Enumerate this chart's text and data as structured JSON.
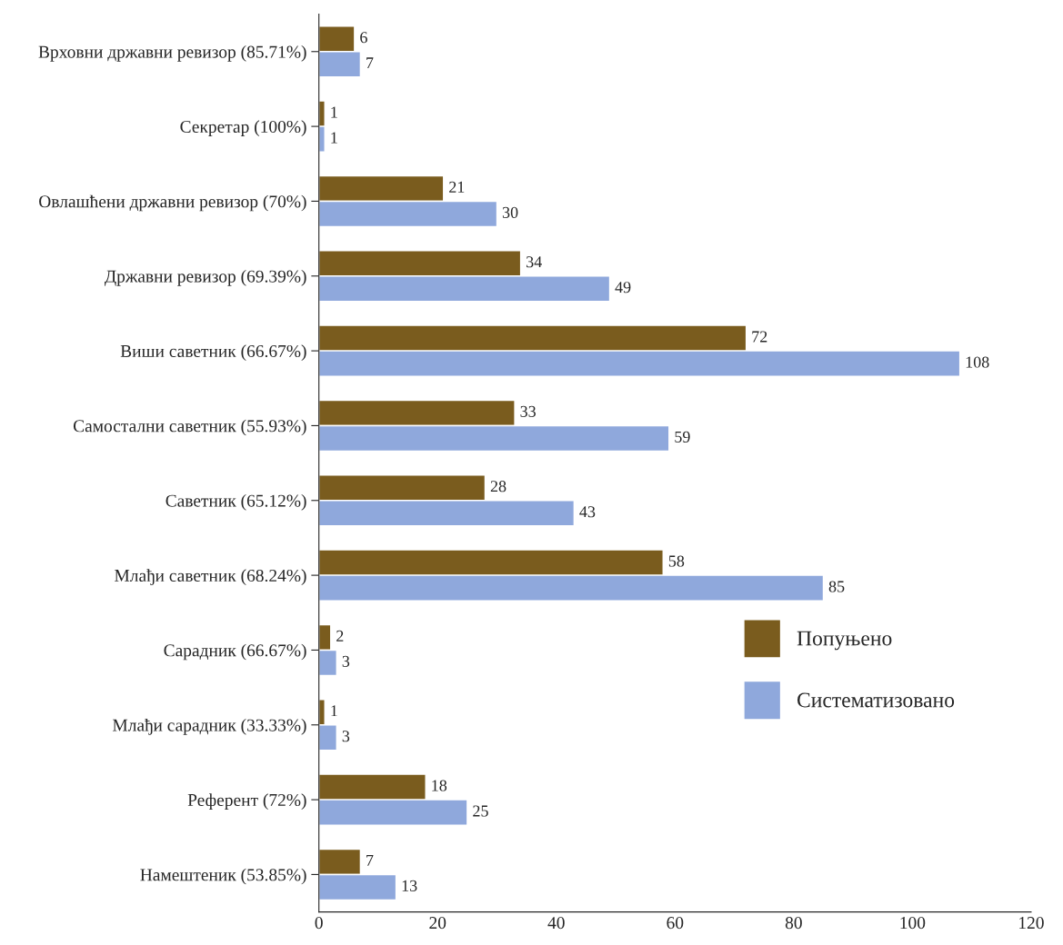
{
  "chart_data": {
    "type": "bar",
    "orientation": "horizontal",
    "categories": [
      "Врховни државни ревизор (85.71%)",
      "Секретар (100%)",
      "Овлашћени државни ревизор (70%)",
      "Државни ревизор (69.39%)",
      "Виши саветник (66.67%)",
      "Самостални саветник (55.93%)",
      "Саветник (65.12%)",
      "Млађи саветник (68.24%)",
      "Сарадник (66.67%)",
      "Млађи сарадник (33.33%)",
      "Референт (72%)",
      "Намештеник (53.85%)"
    ],
    "series": [
      {
        "name": "Попуњено",
        "color": "#7a5c1e",
        "values": [
          6,
          1,
          21,
          34,
          72,
          33,
          28,
          58,
          2,
          1,
          18,
          7
        ]
      },
      {
        "name": "Систематизовано",
        "color": "#8fa8dc",
        "values": [
          7,
          1,
          30,
          49,
          108,
          59,
          43,
          85,
          3,
          3,
          25,
          13
        ]
      }
    ],
    "xlim": [
      0,
      120
    ],
    "xticks": [
      0,
      20,
      40,
      60,
      80,
      100,
      120
    ],
    "data_labels": true,
    "legend": "right",
    "grid": false
  }
}
